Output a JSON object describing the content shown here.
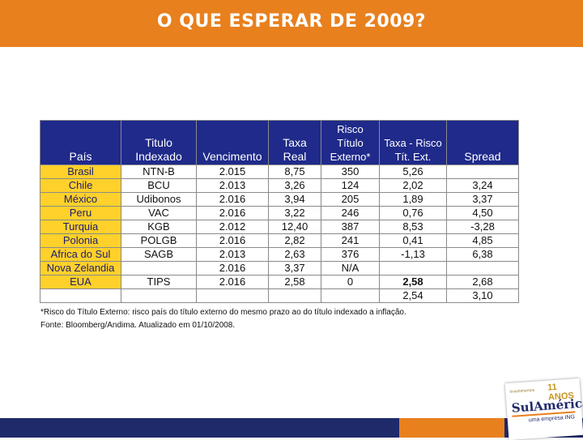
{
  "slide": {
    "title": "O QUE ESPERAR DE 2009?"
  },
  "table": {
    "headers": [
      "País",
      "Titulo Indexado",
      "Vencimento",
      "Taxa Real",
      "Risco Título Externo*",
      "Taxa - Risco Tít. Ext.",
      "Spread"
    ],
    "rows": [
      {
        "pais": "Brasil",
        "titulo": "NTN-B",
        "vencimento": "2.015",
        "taxa_real": "8,75",
        "risco": "350",
        "taxa_risco": "5,26",
        "spread": ""
      },
      {
        "pais": "Chile",
        "titulo": "BCU",
        "vencimento": "2.013",
        "taxa_real": "3,26",
        "risco": "124",
        "taxa_risco": "2,02",
        "spread": "3,24"
      },
      {
        "pais": "México",
        "titulo": "Udibonos",
        "vencimento": "2.016",
        "taxa_real": "3,94",
        "risco": "205",
        "taxa_risco": "1,89",
        "spread": "3,37"
      },
      {
        "pais": "Peru",
        "titulo": "VAC",
        "vencimento": "2.016",
        "taxa_real": "3,22",
        "risco": "246",
        "taxa_risco": "0,76",
        "spread": "4,50"
      },
      {
        "pais": "Turquia",
        "titulo": "KGB",
        "vencimento": "2.012",
        "taxa_real": "12,40",
        "risco": "387",
        "taxa_risco": "8,53",
        "spread": "-3,28"
      },
      {
        "pais": "Polonia",
        "titulo": "POLGB",
        "vencimento": "2.016",
        "taxa_real": "2,82",
        "risco": "241",
        "taxa_risco": "0,41",
        "spread": "4,85"
      },
      {
        "pais": "Africa do Sul",
        "titulo": "SAGB",
        "vencimento": "2.013",
        "taxa_real": "2,63",
        "risco": "376",
        "taxa_risco": "-1,13",
        "spread": "6,38"
      },
      {
        "pais": "Nova Zelandia",
        "titulo": "",
        "vencimento": "2.016",
        "taxa_real": "3,37",
        "risco": "N/A",
        "taxa_risco": "",
        "spread": ""
      },
      {
        "pais": "EUA",
        "titulo": "TIPS",
        "vencimento": "2.016",
        "taxa_real": "2,58",
        "risco": "0",
        "taxa_risco": "2,58",
        "spread": "2,68"
      }
    ],
    "extra_row": {
      "taxa_risco": "2,54",
      "spread": "3,10"
    }
  },
  "footnote": {
    "line1": "*Risco do Título Externo: risco país do título externo do mesmo prazo ao do título indexado a inflação.",
    "line2": "Fonte: Bloomberg/Andima. Atualizado em 01/10/2008."
  },
  "logo": {
    "small_text": "Investimentos",
    "years": "11 ANOS",
    "brand": "SulAmérica",
    "sub": "uma empresa ING"
  },
  "colors": {
    "title_bar": "#e8801e",
    "header": "#1f2a8a",
    "country_cell": "#ffd12a",
    "bottom_bar": "#1f2a6a"
  }
}
